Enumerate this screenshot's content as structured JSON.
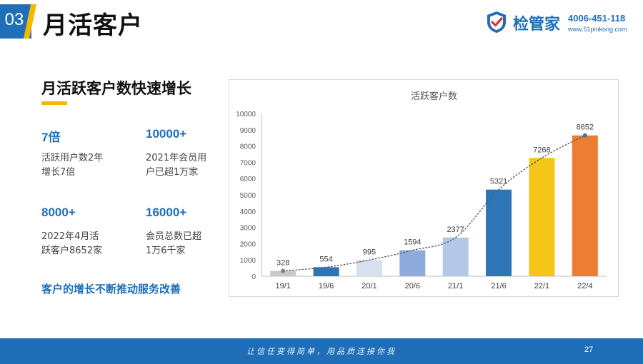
{
  "header": {
    "section_number": "03",
    "title": "月活客户"
  },
  "logo": {
    "name": "检管家",
    "phone": "4006-451-118",
    "url": "www.51pinkong.com"
  },
  "left": {
    "headline": "月活跃客户数快速增长",
    "stats": [
      {
        "value": "7倍",
        "line1": "活跃用户数2年",
        "line2": "增长7倍"
      },
      {
        "value": "10000+",
        "line1": "2021年会员用",
        "line2": "户已超1万家"
      },
      {
        "value": "8000+",
        "line1": "2022年4月活",
        "line2": "跃客户8652家"
      },
      {
        "value": "16000+",
        "line1": "会员总数已超",
        "line2": "1万6千家"
      }
    ],
    "tagline": "客户的增长不断推动服务改善"
  },
  "chart_data": {
    "type": "bar",
    "title": "活跃客户数",
    "categories": [
      "19/1",
      "19/6",
      "20/1",
      "20/6",
      "21/1",
      "21/6",
      "22/1",
      "22/4"
    ],
    "values": [
      328,
      554,
      995,
      1594,
      2377,
      5321,
      7268,
      8652
    ],
    "bar_colors": [
      "#c9c9c9",
      "#2e75b6",
      "#d6e0ef",
      "#8faadc",
      "#b4c7e7",
      "#2e75b6",
      "#f5c518",
      "#ed7d31"
    ],
    "ylim": [
      0,
      10000
    ],
    "yticks": [
      0,
      1000,
      2000,
      3000,
      4000,
      5000,
      6000,
      7000,
      8000,
      9000,
      10000
    ],
    "trendline": "dotted",
    "xlabel": "",
    "ylabel": ""
  },
  "footer": {
    "slogan": "让信任变得简单，用品质连接你我",
    "page_number": "27"
  },
  "colors": {
    "brand_blue": "#1f6fb8",
    "accent_yellow": "#f5b800"
  }
}
